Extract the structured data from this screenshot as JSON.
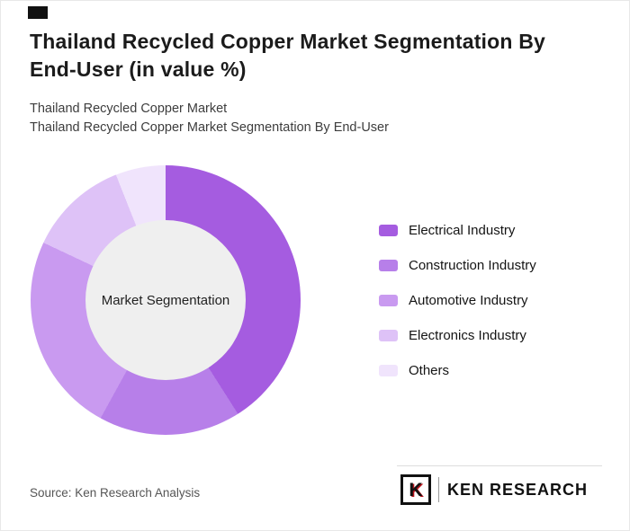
{
  "page": {
    "title": "Thailand Recycled Copper Market Segmentation By End-User (in value %)",
    "subtitle_1": "Thailand Recycled Copper Market",
    "subtitle_2": "Thailand Recycled Copper Market Segmentation By End-User",
    "source": "Source: Ken Research Analysis",
    "logo_letter": "K",
    "logo_text": "KEN RESEARCH"
  },
  "chart_data": {
    "type": "pie",
    "subtype": "donut",
    "title": "Thailand Recycled Copper Market Segmentation By End-User (in value %)",
    "center_label": "Market Segmentation",
    "categories": [
      "Electrical Industry",
      "Construction Industry",
      "Automotive Industry",
      "Electronics Industry",
      "Others"
    ],
    "values": [
      41,
      17,
      24,
      12,
      6
    ],
    "colors": [
      "#a55ce0",
      "#b77fe9",
      "#c99af0",
      "#dec2f7",
      "#f0e4fc"
    ],
    "center_color": "#efefef",
    "legend_position": "right",
    "start_angle_deg": 0,
    "direction": "clockwise"
  }
}
